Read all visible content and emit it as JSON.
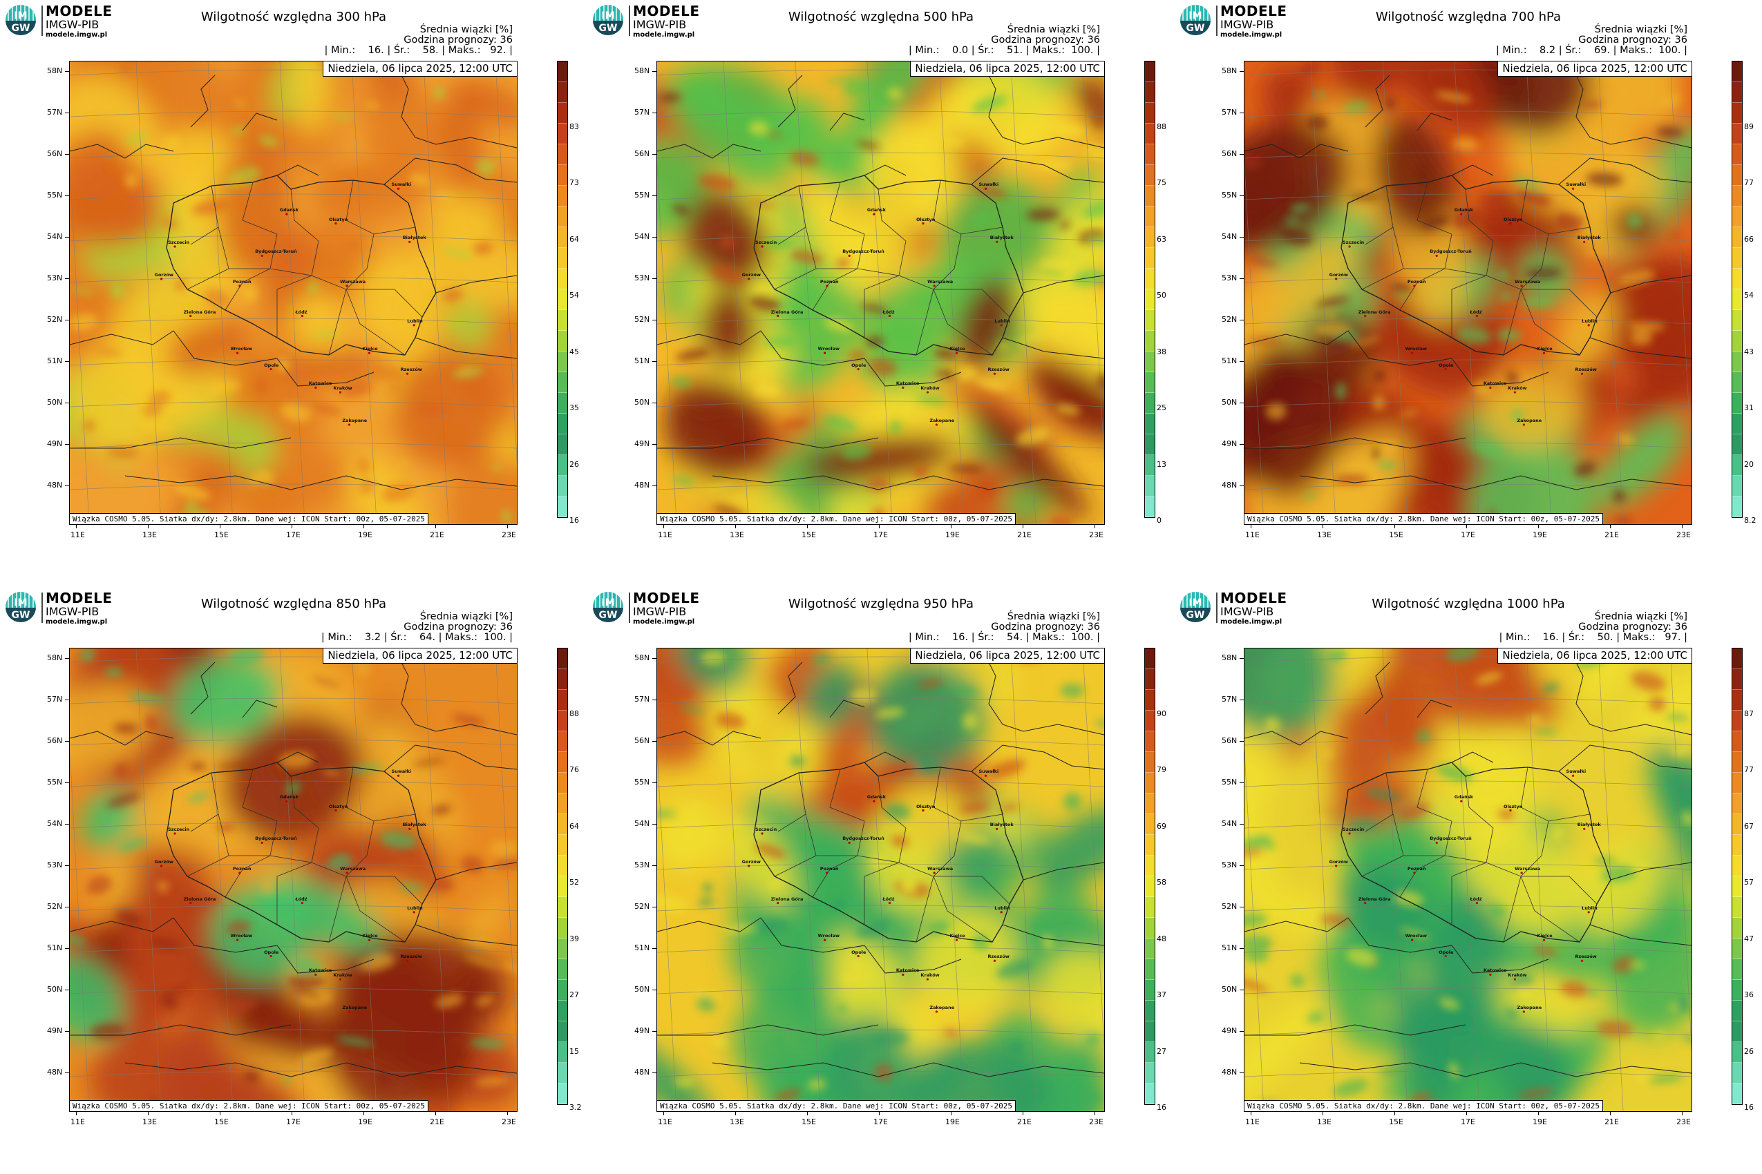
{
  "branding": {
    "logo_top": "IM",
    "logo_bottom": "GW",
    "line1": "MODELE",
    "line2": "IMGW-PIB",
    "line3": "modele.imgw.pl"
  },
  "common": {
    "stats_title": "Średnia wiązki [%]",
    "forecast_hour": "Godzina prognozy: 36",
    "date_label": "Niedziela, 06 lipca 2025, 12:00 UTC",
    "footer": "Wiązka COSMO 5.05. Siatka dx/dy: 2.8km. Dane wej: ICON Start: 00z, 05-07-2025",
    "lat_labels": [
      "58N",
      "57N",
      "56N",
      "55N",
      "54N",
      "53N",
      "52N",
      "51N",
      "50N",
      "49N",
      "48N"
    ],
    "lon_labels": [
      "11E",
      "13E",
      "15E",
      "17E",
      "19E",
      "21E",
      "23E"
    ],
    "cities": [
      "Gdańsk",
      "Olsztyn",
      "Suwałki",
      "Szczecin",
      "Bydgoszcz-Toruń",
      "Białystok",
      "Gorzów",
      "Poznań",
      "Warszawa",
      "Zielona Góra",
      "Łódź",
      "Lublin",
      "Wrocław",
      "Kielce",
      "Opole",
      "Katowice",
      "Kraków",
      "Rzeszów",
      "Zakopane"
    ]
  },
  "panels": [
    {
      "title": "Wilgotność względna 300 hPa",
      "min": "16.",
      "avg": "58.",
      "max": "92.",
      "colorbar_ticks": [
        "83",
        "73",
        "64",
        "54",
        "45",
        "35",
        "26",
        "16"
      ],
      "theme": "orange-mix",
      "colors": {
        "base": "#f0a030",
        "dominant": "#e27a1e",
        "accent": "#a8d43a"
      }
    },
    {
      "title": "Wilgotność względna 500 hPa",
      "min": "0.0",
      "avg": "51.",
      "max": "100.",
      "colorbar_ticks": [
        "88",
        "75",
        "63",
        "50",
        "38",
        "25",
        "13",
        "0"
      ],
      "theme": "mixed",
      "colors": {
        "base": "#f2b829",
        "dominant": "#c84a16",
        "accent": "#52c24a"
      }
    },
    {
      "title": "Wilgotność względna 700 hPa",
      "min": "8.2",
      "avg": "69.",
      "max": "100.",
      "colorbar_ticks": [
        "89",
        "77",
        "66",
        "54",
        "43",
        "31",
        "20",
        "8.2"
      ],
      "theme": "red-mix",
      "colors": {
        "base": "#e2621a",
        "dominant": "#a32a12",
        "accent": "#58c45a"
      }
    },
    {
      "title": "Wilgotność względna 850 hPa",
      "min": "3.2",
      "avg": "64.",
      "max": "100.",
      "colorbar_ticks": [
        "88",
        "76",
        "64",
        "52",
        "39",
        "27",
        "15",
        "3.2"
      ],
      "theme": "red-orange",
      "colors": {
        "base": "#e88a22",
        "dominant": "#b8401a",
        "accent": "#3cc26a"
      }
    },
    {
      "title": "Wilgotność względna 950 hPa",
      "min": "16.",
      "avg": "54.",
      "max": "100.",
      "colorbar_ticks": [
        "90",
        "79",
        "69",
        "58",
        "48",
        "37",
        "27",
        "16"
      ],
      "theme": "green-mix",
      "colors": {
        "base": "#f0c82a",
        "dominant": "#c84a16",
        "accent": "#3cae5a"
      }
    },
    {
      "title": "Wilgotność względna 1000 hPa",
      "min": "16.",
      "avg": "50.",
      "max": "97.",
      "colorbar_ticks": [
        "87",
        "77",
        "67",
        "57",
        "47",
        "36",
        "26",
        "16"
      ],
      "theme": "green-mix",
      "colors": {
        "base": "#e8d030",
        "dominant": "#c8501a",
        "accent": "#40b256"
      }
    }
  ],
  "colorbar_colors": [
    "#6d1a0e",
    "#8a2410",
    "#a8300f",
    "#c4421a",
    "#d65a1c",
    "#e2721e",
    "#ec8a22",
    "#f2a026",
    "#f5b52a",
    "#f6c82c",
    "#f4dc2e",
    "#e8e82e",
    "#c8e032",
    "#a2d43a",
    "#7cc84a",
    "#56bc56",
    "#3cb05c",
    "#2ea060",
    "#2c9a62",
    "#48c088",
    "#6ad8b0",
    "#80e8cc"
  ]
}
